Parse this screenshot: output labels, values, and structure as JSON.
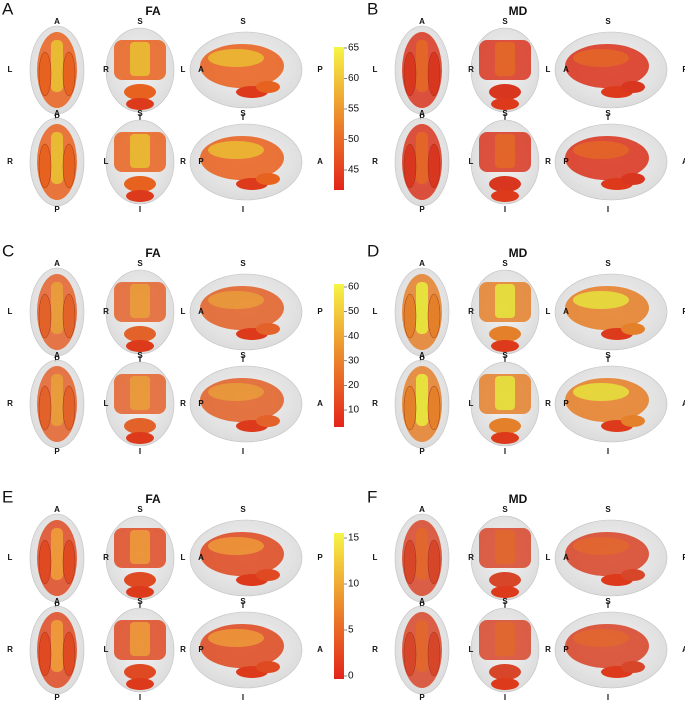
{
  "panels": [
    {
      "letter": "A",
      "title": "FA",
      "rows": [
        {
          "top": [
            "A",
            "S",
            "S"
          ],
          "sides": [
            "L",
            "R",
            "L",
            "A",
            "P"
          ],
          "bottom": [
            "P",
            "I",
            "I"
          ]
        },
        {
          "top": [
            "A",
            "S",
            "S"
          ],
          "sides": [
            "R",
            "L",
            "R",
            "P",
            "A"
          ],
          "bottom": [
            "P",
            "I",
            "I"
          ]
        }
      ]
    },
    {
      "letter": "B",
      "title": "MD",
      "rows": [
        {
          "top": [
            "A",
            "S",
            "S"
          ],
          "sides": [
            "L",
            "R",
            "L",
            "A",
            "P"
          ],
          "bottom": [
            "P",
            "I",
            "I"
          ]
        },
        {
          "top": [
            "A",
            "S",
            "S"
          ],
          "sides": [
            "R",
            "L",
            "R",
            "P",
            "A"
          ],
          "bottom": [
            "P",
            "I",
            "I"
          ]
        }
      ]
    },
    {
      "letter": "C",
      "title": "FA",
      "rows": [
        {
          "top": [
            "A",
            "S",
            "S"
          ],
          "sides": [
            "L",
            "R",
            "L",
            "A",
            "P"
          ],
          "bottom": [
            "P",
            "I",
            "I"
          ]
        },
        {
          "top": [
            "A",
            "S",
            "S"
          ],
          "sides": [
            "R",
            "L",
            "R",
            "P",
            "A"
          ],
          "bottom": [
            "P",
            "I",
            "I"
          ]
        }
      ]
    },
    {
      "letter": "D",
      "title": "MD",
      "rows": [
        {
          "top": [
            "A",
            "S",
            "S"
          ],
          "sides": [
            "L",
            "R",
            "L",
            "A",
            "P"
          ],
          "bottom": [
            "P",
            "I",
            "I"
          ]
        },
        {
          "top": [
            "A",
            "S",
            "S"
          ],
          "sides": [
            "R",
            "L",
            "R",
            "P",
            "A"
          ],
          "bottom": [
            "P",
            "I",
            "I"
          ]
        }
      ]
    },
    {
      "letter": "E",
      "title": "FA",
      "rows": [
        {
          "top": [
            "A",
            "S",
            "S"
          ],
          "sides": [
            "L",
            "R",
            "L",
            "A",
            "P"
          ],
          "bottom": [
            "P",
            "I",
            "I"
          ]
        },
        {
          "top": [
            "A",
            "S",
            "S"
          ],
          "sides": [
            "R",
            "L",
            "R",
            "P",
            "A"
          ],
          "bottom": [
            "P",
            "I",
            "I"
          ]
        }
      ]
    },
    {
      "letter": "F",
      "title": "MD",
      "rows": [
        {
          "top": [
            "A",
            "S",
            "S"
          ],
          "sides": [
            "L",
            "R",
            "L",
            "A",
            "P"
          ],
          "bottom": [
            "P",
            "I",
            "I"
          ]
        },
        {
          "top": [
            "A",
            "S",
            "S"
          ],
          "sides": [
            "R",
            "L",
            "R",
            "P",
            "A"
          ],
          "bottom": [
            "P",
            "I",
            "I"
          ]
        }
      ]
    }
  ],
  "colorbars": [
    {
      "ticks": [
        65,
        60,
        55,
        50,
        45
      ]
    },
    {
      "ticks": [
        60,
        50,
        40,
        30,
        20,
        10
      ]
    },
    {
      "ticks": [
        15,
        10,
        5,
        0
      ]
    }
  ]
}
